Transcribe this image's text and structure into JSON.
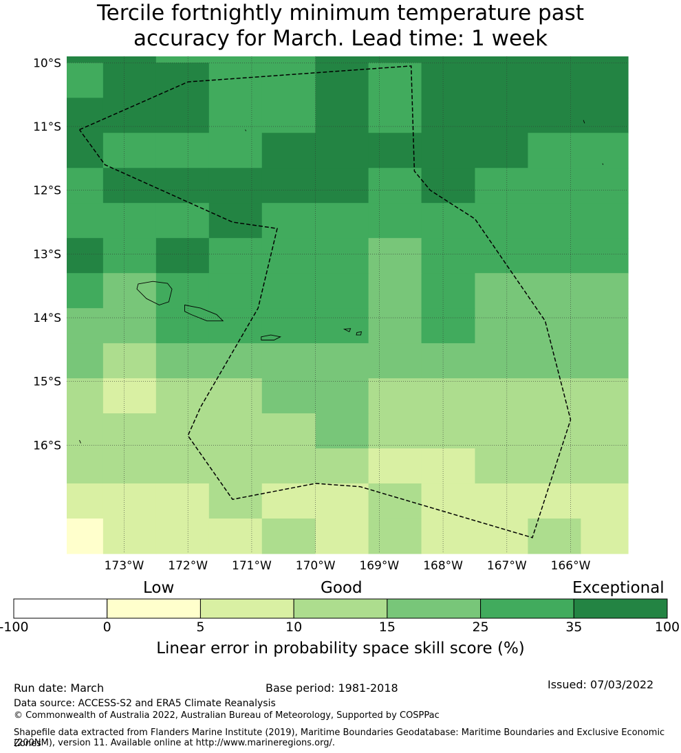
{
  "title_line1": "Tercile fortnightly minimum temperature past",
  "title_line2": "accuracy for March. Lead time: 1 week",
  "map": {
    "lon_min": -173.9,
    "lon_max": -165.1,
    "lat_top": -9.9,
    "lat_bottom": -17.7,
    "lat_labels": [
      "10°S",
      "11°S",
      "12°S",
      "13°S",
      "14°S",
      "15°S",
      "16°S"
    ],
    "lat_values": [
      -10,
      -11,
      -12,
      -13,
      -14,
      -15,
      -16
    ],
    "lon_labels": [
      "173°W",
      "172°W",
      "171°W",
      "170°W",
      "169°W",
      "168°W",
      "167°W",
      "166°W"
    ],
    "lon_values": [
      -173,
      -172,
      -171,
      -170,
      -169,
      -168,
      -167,
      -166
    ],
    "grid_col_edges_lon": [
      -173.9,
      -173.33,
      -172.5,
      -171.67,
      -170.84,
      -170.0,
      -169.17,
      -168.34,
      -167.5,
      -166.67,
      -165.84,
      -165.1
    ],
    "grid_row_edges_lat": [
      -9.9,
      -10.0,
      -10.55,
      -11.1,
      -11.65,
      -12.2,
      -12.75,
      -13.3,
      -13.85,
      -14.4,
      -14.95,
      -15.5,
      -16.05,
      -16.6,
      -17.15,
      -17.7
    ],
    "cell_classes": [
      [
        6,
        6,
        5,
        5,
        5,
        6,
        6,
        6,
        6,
        6,
        6
      ],
      [
        5,
        6,
        6,
        5,
        5,
        6,
        5,
        6,
        6,
        6,
        6
      ],
      [
        6,
        6,
        6,
        5,
        5,
        6,
        5,
        6,
        6,
        6,
        6
      ],
      [
        6,
        5,
        5,
        5,
        6,
        6,
        6,
        6,
        6,
        5,
        5
      ],
      [
        5,
        6,
        6,
        6,
        6,
        6,
        5,
        6,
        5,
        5,
        5
      ],
      [
        5,
        5,
        5,
        6,
        5,
        5,
        5,
        5,
        5,
        5,
        5
      ],
      [
        6,
        5,
        6,
        5,
        5,
        5,
        4,
        5,
        5,
        5,
        5
      ],
      [
        5,
        4,
        5,
        5,
        5,
        5,
        4,
        5,
        4,
        4,
        4
      ],
      [
        4,
        4,
        5,
        5,
        5,
        5,
        4,
        5,
        4,
        4,
        4
      ],
      [
        4,
        3,
        4,
        4,
        4,
        4,
        4,
        4,
        4,
        4,
        4
      ],
      [
        3,
        2,
        3,
        3,
        4,
        4,
        3,
        3,
        3,
        3,
        3
      ],
      [
        3,
        3,
        3,
        3,
        3,
        4,
        3,
        3,
        3,
        3,
        3
      ],
      [
        3,
        3,
        3,
        3,
        3,
        3,
        2,
        2,
        3,
        3,
        3
      ],
      [
        2,
        2,
        2,
        3,
        2,
        2,
        3,
        2,
        2,
        2,
        2
      ],
      [
        1,
        2,
        2,
        2,
        3,
        2,
        3,
        2,
        2,
        3,
        2
      ]
    ],
    "eez_boundary": [
      [
        -173.7,
        -11.05
      ],
      [
        -172.0,
        -10.3
      ],
      [
        -168.5,
        -10.05
      ],
      [
        -168.45,
        -11.7
      ],
      [
        -168.2,
        -12.0
      ],
      [
        -167.5,
        -12.45
      ],
      [
        -166.4,
        -14.05
      ],
      [
        -166.0,
        -15.6
      ],
      [
        -166.6,
        -17.45
      ],
      [
        -169.3,
        -16.65
      ],
      [
        -170.0,
        -16.6
      ],
      [
        -171.3,
        -16.85
      ],
      [
        -172.0,
        -15.85
      ],
      [
        -171.8,
        -15.4
      ],
      [
        -170.9,
        -13.85
      ],
      [
        -170.6,
        -12.6
      ],
      [
        -171.3,
        -12.5
      ],
      [
        -172.3,
        -12.05
      ],
      [
        -173.3,
        -11.6
      ],
      [
        -173.7,
        -11.05
      ]
    ],
    "islands": [
      [
        [
          -172.78,
          -13.47
        ],
        [
          -172.55,
          -13.43
        ],
        [
          -172.32,
          -13.46
        ],
        [
          -172.25,
          -13.55
        ],
        [
          -172.3,
          -13.75
        ],
        [
          -172.45,
          -13.8
        ],
        [
          -172.65,
          -13.7
        ],
        [
          -172.8,
          -13.55
        ]
      ],
      [
        [
          -172.05,
          -13.8
        ],
        [
          -171.8,
          -13.85
        ],
        [
          -171.55,
          -13.95
        ],
        [
          -171.45,
          -14.05
        ],
        [
          -171.7,
          -14.05
        ],
        [
          -171.95,
          -13.95
        ],
        [
          -172.05,
          -13.9
        ]
      ],
      [
        [
          -170.85,
          -14.3
        ],
        [
          -170.7,
          -14.27
        ],
        [
          -170.55,
          -14.3
        ],
        [
          -170.65,
          -14.35
        ],
        [
          -170.85,
          -14.35
        ]
      ],
      [
        [
          -169.55,
          -14.18
        ],
        [
          -169.45,
          -14.17
        ],
        [
          -169.47,
          -14.22
        ]
      ],
      [
        [
          -169.35,
          -14.23
        ],
        [
          -169.28,
          -14.22
        ],
        [
          -169.29,
          -14.27
        ],
        [
          -169.36,
          -14.27
        ]
      ],
      [
        [
          -165.8,
          -10.9
        ],
        [
          -165.78,
          -10.95
        ]
      ],
      [
        [
          -171.1,
          -11.05
        ],
        [
          -171.09,
          -11.07
        ]
      ],
      [
        [
          -165.5,
          -11.58
        ],
        [
          -165.49,
          -11.6
        ]
      ],
      [
        [
          -173.7,
          -15.92
        ],
        [
          -173.68,
          -15.97
        ]
      ]
    ]
  },
  "colorbar": {
    "colors": [
      "#ffffff",
      "#ffffcc",
      "#d9f0a3",
      "#addd8e",
      "#78c679",
      "#41ab5d",
      "#238443"
    ],
    "ticks": [
      "-100",
      "0",
      "5",
      "10",
      "15",
      "25",
      "35",
      "100"
    ],
    "words": [
      "Low",
      "Good",
      "Exceptional"
    ],
    "label": "Linear error in probability space skill score (%)"
  },
  "footer": {
    "run_date": "Run date: March",
    "base_period": "Base period: 1981-2018",
    "issued": "Issued: 07/03/2022",
    "data_source": "Data source: ACCESS-S2 and ERA5 Climate Reanalysis",
    "copyright": "© Commonwealth of Australia 2022, Australian Bureau of Meteorology, Supported by COSPPac",
    "shapefile_line1": "Shapefile data extracted from Flanders Marine Institute (2019), Maritime Boundaries Geodatabase: Maritime Boundaries and Exclusive Economic Zones",
    "shapefile_line2": "(200NM), version 11. Available online at http://www.marineregions.org/."
  }
}
